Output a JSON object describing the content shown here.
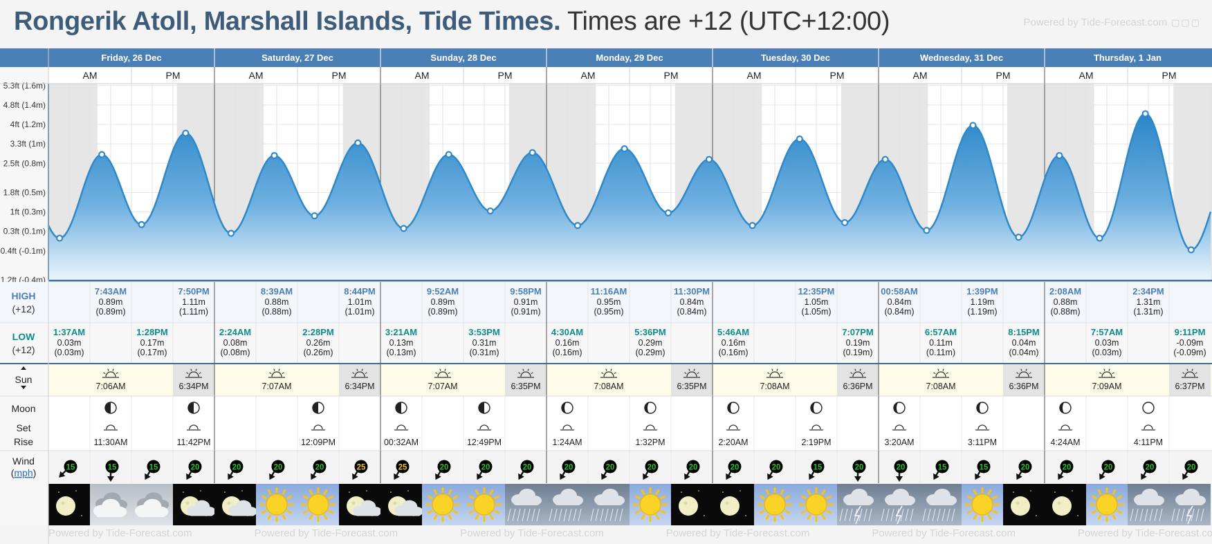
{
  "header": {
    "location_title": "Rongerik Atoll, Marshall Islands, Tide Times.",
    "timezone_text": "Times are +12 (UTC+12:00)",
    "powered_by": "Powered by Tide-Forecast.com"
  },
  "footer": {
    "watermarks": [
      "Powered by Tide-Forecast.com",
      "Powered by Tide-Forecast.com",
      "Powered by Tide-Forecast.com",
      "Powered by Tide-Forecast.com",
      "Powered by Tide-Forecast.com",
      "Powered by Tide-Forecast.com"
    ]
  },
  "labels": {
    "high": "HIGH",
    "high_tz": "(+12)",
    "low": "LOW",
    "low_tz": "(+12)",
    "sun": "Sun",
    "moon": "Moon",
    "set": "Set",
    "rise": "Rise",
    "wind": "Wind",
    "wind_unit": "mph",
    "am": "AM",
    "pm": "PM"
  },
  "colors": {
    "header_blue": "#4a7fb5",
    "tide_blue": "#2f88c8",
    "night_shade": "#e6e6e6",
    "sun_cell": "#fbfbe8",
    "wind_badge": "#1fc21f"
  },
  "days": [
    {
      "label": "Friday, 26 Dec",
      "sunrise": "7:06AM",
      "sunset": "6:34PM"
    },
    {
      "label": "Saturday, 27 Dec",
      "sunrise": "7:07AM",
      "sunset": "6:34PM"
    },
    {
      "label": "Sunday, 28 Dec",
      "sunrise": "7:07AM",
      "sunset": "6:35PM"
    },
    {
      "label": "Monday, 29 Dec",
      "sunrise": "7:08AM",
      "sunset": "6:35PM"
    },
    {
      "label": "Tuesday, 30 Dec",
      "sunrise": "7:08AM",
      "sunset": "6:36PM"
    },
    {
      "label": "Wednesday, 31 Dec",
      "sunrise": "7:08AM",
      "sunset": "6:36PM"
    },
    {
      "label": "Thursday, 1 Jan",
      "sunrise": "7:09AM",
      "sunset": "6:37PM"
    }
  ],
  "chart_data": {
    "type": "area",
    "title": "",
    "x_unit": "hours from Friday, 26 Dec 00:00 (+12)",
    "y_ticks": [
      "5.3ft (1.6m)",
      "4.8ft (1.4m)",
      "4ft (1.2m)",
      "3.3ft (1m)",
      "2.5ft (0.8m)",
      "1.8ft (0.5m)",
      "1ft (0.3m)",
      "0.3ft (0.1m)",
      "-0.4ft (-0.1m)",
      "-1.2ft (-0.4m)"
    ],
    "y_tick_values_m": [
      1.6,
      1.4,
      1.2,
      1.0,
      0.8,
      0.5,
      0.3,
      0.1,
      -0.1,
      -0.4
    ],
    "ylim_m": [
      -0.4,
      1.62
    ],
    "xlim_hours": [
      0,
      168
    ],
    "extremes": [
      {
        "type": "low",
        "day": 0,
        "time": "1:37AM",
        "m": 0.03,
        "m_label": "0.03m",
        "m_paren": "(0.03m)"
      },
      {
        "type": "high",
        "day": 0,
        "time": "7:43AM",
        "m": 0.89,
        "m_label": "0.89m",
        "m_paren": "(0.89m)"
      },
      {
        "type": "low",
        "day": 0,
        "time": "1:28PM",
        "m": 0.17,
        "m_label": "0.17m",
        "m_paren": "(0.17m)"
      },
      {
        "type": "high",
        "day": 0,
        "time": "7:50PM",
        "m": 1.11,
        "m_label": "1.11m",
        "m_paren": "(1.11m)"
      },
      {
        "type": "low",
        "day": 1,
        "time": "2:24AM",
        "m": 0.08,
        "m_label": "0.08m",
        "m_paren": "(0.08m)"
      },
      {
        "type": "high",
        "day": 1,
        "time": "8:39AM",
        "m": 0.88,
        "m_label": "0.88m",
        "m_paren": "(0.88m)"
      },
      {
        "type": "low",
        "day": 1,
        "time": "2:28PM",
        "m": 0.26,
        "m_label": "0.26m",
        "m_paren": "(0.26m)"
      },
      {
        "type": "high",
        "day": 1,
        "time": "8:44PM",
        "m": 1.01,
        "m_label": "1.01m",
        "m_paren": "(1.01m)"
      },
      {
        "type": "low",
        "day": 2,
        "time": "3:21AM",
        "m": 0.13,
        "m_label": "0.13m",
        "m_paren": "(0.13m)"
      },
      {
        "type": "high",
        "day": 2,
        "time": "9:52AM",
        "m": 0.89,
        "m_label": "0.89m",
        "m_paren": "(0.89m)"
      },
      {
        "type": "low",
        "day": 2,
        "time": "3:53PM",
        "m": 0.31,
        "m_label": "0.31m",
        "m_paren": "(0.31m)"
      },
      {
        "type": "high",
        "day": 2,
        "time": "9:58PM",
        "m": 0.91,
        "m_label": "0.91m",
        "m_paren": "(0.91m)"
      },
      {
        "type": "low",
        "day": 3,
        "time": "4:30AM",
        "m": 0.16,
        "m_label": "0.16m",
        "m_paren": "(0.16m)"
      },
      {
        "type": "high",
        "day": 3,
        "time": "11:16AM",
        "m": 0.95,
        "m_label": "0.95m",
        "m_paren": "(0.95m)"
      },
      {
        "type": "low",
        "day": 3,
        "time": "5:36PM",
        "m": 0.29,
        "m_label": "0.29m",
        "m_paren": "(0.29m)"
      },
      {
        "type": "high",
        "day": 3,
        "time": "11:30PM",
        "m": 0.84,
        "m_label": "0.84m",
        "m_paren": "(0.84m)"
      },
      {
        "type": "low",
        "day": 4,
        "time": "5:46AM",
        "m": 0.16,
        "m_label": "0.16m",
        "m_paren": "(0.16m)"
      },
      {
        "type": "high",
        "day": 4,
        "time": "12:35PM",
        "m": 1.05,
        "m_label": "1.05m",
        "m_paren": "(1.05m)"
      },
      {
        "type": "low",
        "day": 4,
        "time": "7:07PM",
        "m": 0.19,
        "m_label": "0.19m",
        "m_paren": "(0.19m)"
      },
      {
        "type": "high",
        "day": 5,
        "time": "00:58AM",
        "m": 0.84,
        "m_label": "0.84m",
        "m_paren": "(0.84m)"
      },
      {
        "type": "low",
        "day": 5,
        "time": "6:57AM",
        "m": 0.11,
        "m_label": "0.11m",
        "m_paren": "(0.11m)"
      },
      {
        "type": "high",
        "day": 5,
        "time": "1:39PM",
        "m": 1.19,
        "m_label": "1.19m",
        "m_paren": "(1.19m)"
      },
      {
        "type": "low",
        "day": 5,
        "time": "8:15PM",
        "m": 0.04,
        "m_label": "0.04m",
        "m_paren": "(0.04m)"
      },
      {
        "type": "high",
        "day": 6,
        "time": "2:08AM",
        "m": 0.88,
        "m_label": "0.88m",
        "m_paren": "(0.88m)"
      },
      {
        "type": "low",
        "day": 6,
        "time": "7:57AM",
        "m": 0.03,
        "m_label": "0.03m",
        "m_paren": "(0.03m)"
      },
      {
        "type": "high",
        "day": 6,
        "time": "2:34PM",
        "m": 1.31,
        "m_label": "1.31m",
        "m_paren": "(1.31m)"
      },
      {
        "type": "low",
        "day": 6,
        "time": "9:11PM",
        "m": -0.09,
        "m_label": "-0.09m",
        "m_paren": "(-0.09m)"
      }
    ]
  },
  "moon": [
    {
      "day": 0,
      "set": "11:30AM",
      "rise": "11:42PM",
      "phase_icons": [
        "first-quarter",
        "first-quarter"
      ]
    },
    {
      "day": 1,
      "set": "",
      "rise": "12:09PM",
      "phase_icons": [
        "",
        "first-quarter"
      ]
    },
    {
      "day": 2,
      "set": "00:32AM",
      "rise": "12:49PM",
      "phase_icons": [
        "first-quarter",
        "first-quarter"
      ]
    },
    {
      "day": 3,
      "set": "1:24AM",
      "rise": "1:32PM",
      "phase_icons": [
        "waxing-gibbous",
        "waxing-gibbous"
      ]
    },
    {
      "day": 4,
      "set": "2:20AM",
      "rise": "2:19PM",
      "phase_icons": [
        "waxing-gibbous",
        "waxing-gibbous"
      ]
    },
    {
      "day": 5,
      "set": "3:20AM",
      "rise": "3:11PM",
      "phase_icons": [
        "waxing-gibbous",
        "waxing-gibbous"
      ]
    },
    {
      "day": 6,
      "set": "4:24AM",
      "rise": "4:11PM",
      "phase_icons": [
        "waxing-gibbous",
        "full"
      ]
    }
  ],
  "wind": [
    {
      "speed": "15",
      "dir": 225
    },
    {
      "speed": "15",
      "dir": 270
    },
    {
      "speed": "15",
      "dir": 240
    },
    {
      "speed": "20",
      "dir": 240
    },
    {
      "speed": "20",
      "dir": 240
    },
    {
      "speed": "20",
      "dir": 240
    },
    {
      "speed": "20",
      "dir": 240
    },
    {
      "speed": "25",
      "dir": 240
    },
    {
      "speed": "25",
      "dir": 240
    },
    {
      "speed": "20",
      "dir": 240
    },
    {
      "speed": "20",
      "dir": 240
    },
    {
      "speed": "20",
      "dir": 240
    },
    {
      "speed": "20",
      "dir": 240
    },
    {
      "speed": "20",
      "dir": 240
    },
    {
      "speed": "20",
      "dir": 240
    },
    {
      "speed": "20",
      "dir": 240
    },
    {
      "speed": "20",
      "dir": 240
    },
    {
      "speed": "20",
      "dir": 240
    },
    {
      "speed": "15",
      "dir": 240
    },
    {
      "speed": "20",
      "dir": 270
    },
    {
      "speed": "20",
      "dir": 270
    },
    {
      "speed": "15",
      "dir": 240
    },
    {
      "speed": "15",
      "dir": 240
    },
    {
      "speed": "20",
      "dir": 240
    },
    {
      "speed": "20",
      "dir": 240
    },
    {
      "speed": "20",
      "dir": 240
    },
    {
      "speed": "20",
      "dir": 240
    },
    {
      "speed": "20",
      "dir": 240
    }
  ],
  "weather": [
    "night-clear",
    "overcast",
    "overcast",
    "night-cloudy",
    "night-cloudy",
    "sunny",
    "sunny",
    "night-cloudy",
    "night-cloudy",
    "sunny",
    "sunny",
    "rain",
    "rain",
    "rain",
    "sunny",
    "night-clear",
    "night-clear",
    "sunny",
    "sunny",
    "thunder",
    "thunder",
    "rain",
    "sunny",
    "night-clear",
    "night-clear",
    "sunny",
    "rain",
    "thunder"
  ]
}
